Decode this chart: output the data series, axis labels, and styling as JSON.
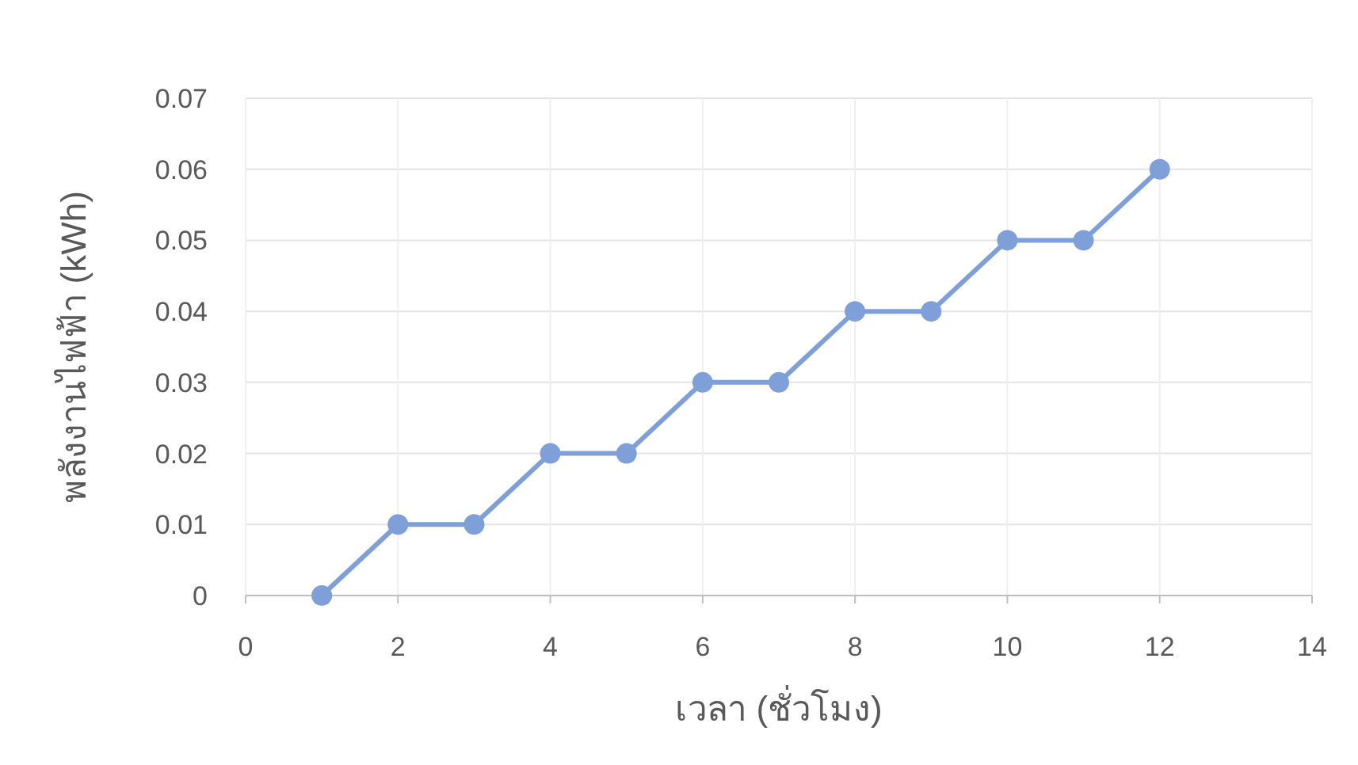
{
  "chart_data": {
    "type": "line",
    "xlabel": "เวลา (ชั่วโมง)",
    "ylabel": "พลังงานไฟฟ้า (kWh)",
    "x": [
      1,
      2,
      3,
      4,
      5,
      6,
      7,
      8,
      9,
      10,
      11,
      12
    ],
    "series": [
      {
        "color": "#7f9fd8",
        "values": [
          0,
          0.01,
          0.01,
          0.02,
          0.02,
          0.03,
          0.03,
          0.04,
          0.04,
          0.05,
          0.05,
          0.06
        ]
      }
    ],
    "xlim": [
      0,
      14
    ],
    "xticks": [
      0,
      2,
      4,
      6,
      8,
      10,
      12,
      14
    ],
    "ylim": [
      0,
      0.07
    ],
    "yticks": [
      0,
      0.01,
      0.02,
      0.03,
      0.04,
      0.05,
      0.06,
      0.07
    ],
    "grid": true,
    "marker": "circle",
    "line_style": "solid"
  }
}
